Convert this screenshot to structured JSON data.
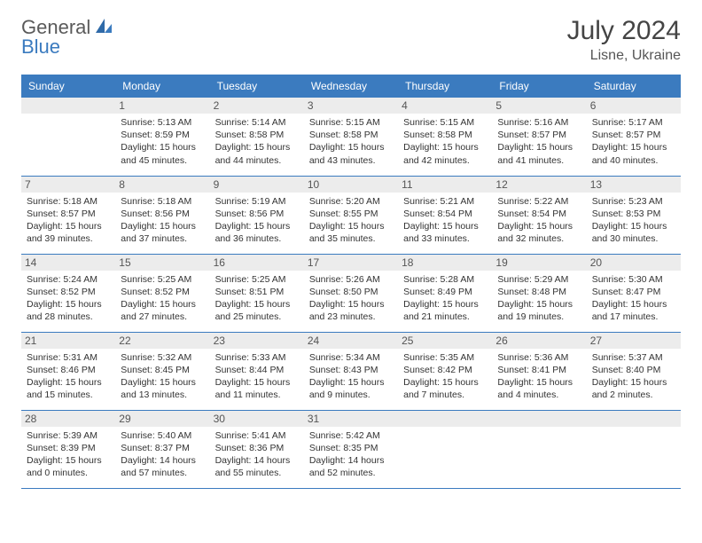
{
  "brand": {
    "part_a": "General",
    "part_b": "Blue"
  },
  "title": "July 2024",
  "location": "Lisne, Ukraine",
  "colors": {
    "header_bg": "#3b7bbf",
    "header_text": "#ffffff",
    "daynum_bg": "#ececec",
    "border": "#3b7bbf",
    "body_text": "#333333",
    "logo_gray": "#5a5a5a",
    "logo_blue": "#3b7bbf"
  },
  "weekdays": [
    "Sunday",
    "Monday",
    "Tuesday",
    "Wednesday",
    "Thursday",
    "Friday",
    "Saturday"
  ],
  "weeks": [
    [
      null,
      {
        "n": "1",
        "sr": "Sunrise: 5:13 AM",
        "ss": "Sunset: 8:59 PM",
        "d1": "Daylight: 15 hours",
        "d2": "and 45 minutes."
      },
      {
        "n": "2",
        "sr": "Sunrise: 5:14 AM",
        "ss": "Sunset: 8:58 PM",
        "d1": "Daylight: 15 hours",
        "d2": "and 44 minutes."
      },
      {
        "n": "3",
        "sr": "Sunrise: 5:15 AM",
        "ss": "Sunset: 8:58 PM",
        "d1": "Daylight: 15 hours",
        "d2": "and 43 minutes."
      },
      {
        "n": "4",
        "sr": "Sunrise: 5:15 AM",
        "ss": "Sunset: 8:58 PM",
        "d1": "Daylight: 15 hours",
        "d2": "and 42 minutes."
      },
      {
        "n": "5",
        "sr": "Sunrise: 5:16 AM",
        "ss": "Sunset: 8:57 PM",
        "d1": "Daylight: 15 hours",
        "d2": "and 41 minutes."
      },
      {
        "n": "6",
        "sr": "Sunrise: 5:17 AM",
        "ss": "Sunset: 8:57 PM",
        "d1": "Daylight: 15 hours",
        "d2": "and 40 minutes."
      }
    ],
    [
      {
        "n": "7",
        "sr": "Sunrise: 5:18 AM",
        "ss": "Sunset: 8:57 PM",
        "d1": "Daylight: 15 hours",
        "d2": "and 39 minutes."
      },
      {
        "n": "8",
        "sr": "Sunrise: 5:18 AM",
        "ss": "Sunset: 8:56 PM",
        "d1": "Daylight: 15 hours",
        "d2": "and 37 minutes."
      },
      {
        "n": "9",
        "sr": "Sunrise: 5:19 AM",
        "ss": "Sunset: 8:56 PM",
        "d1": "Daylight: 15 hours",
        "d2": "and 36 minutes."
      },
      {
        "n": "10",
        "sr": "Sunrise: 5:20 AM",
        "ss": "Sunset: 8:55 PM",
        "d1": "Daylight: 15 hours",
        "d2": "and 35 minutes."
      },
      {
        "n": "11",
        "sr": "Sunrise: 5:21 AM",
        "ss": "Sunset: 8:54 PM",
        "d1": "Daylight: 15 hours",
        "d2": "and 33 minutes."
      },
      {
        "n": "12",
        "sr": "Sunrise: 5:22 AM",
        "ss": "Sunset: 8:54 PM",
        "d1": "Daylight: 15 hours",
        "d2": "and 32 minutes."
      },
      {
        "n": "13",
        "sr": "Sunrise: 5:23 AM",
        "ss": "Sunset: 8:53 PM",
        "d1": "Daylight: 15 hours",
        "d2": "and 30 minutes."
      }
    ],
    [
      {
        "n": "14",
        "sr": "Sunrise: 5:24 AM",
        "ss": "Sunset: 8:52 PM",
        "d1": "Daylight: 15 hours",
        "d2": "and 28 minutes."
      },
      {
        "n": "15",
        "sr": "Sunrise: 5:25 AM",
        "ss": "Sunset: 8:52 PM",
        "d1": "Daylight: 15 hours",
        "d2": "and 27 minutes."
      },
      {
        "n": "16",
        "sr": "Sunrise: 5:25 AM",
        "ss": "Sunset: 8:51 PM",
        "d1": "Daylight: 15 hours",
        "d2": "and 25 minutes."
      },
      {
        "n": "17",
        "sr": "Sunrise: 5:26 AM",
        "ss": "Sunset: 8:50 PM",
        "d1": "Daylight: 15 hours",
        "d2": "and 23 minutes."
      },
      {
        "n": "18",
        "sr": "Sunrise: 5:28 AM",
        "ss": "Sunset: 8:49 PM",
        "d1": "Daylight: 15 hours",
        "d2": "and 21 minutes."
      },
      {
        "n": "19",
        "sr": "Sunrise: 5:29 AM",
        "ss": "Sunset: 8:48 PM",
        "d1": "Daylight: 15 hours",
        "d2": "and 19 minutes."
      },
      {
        "n": "20",
        "sr": "Sunrise: 5:30 AM",
        "ss": "Sunset: 8:47 PM",
        "d1": "Daylight: 15 hours",
        "d2": "and 17 minutes."
      }
    ],
    [
      {
        "n": "21",
        "sr": "Sunrise: 5:31 AM",
        "ss": "Sunset: 8:46 PM",
        "d1": "Daylight: 15 hours",
        "d2": "and 15 minutes."
      },
      {
        "n": "22",
        "sr": "Sunrise: 5:32 AM",
        "ss": "Sunset: 8:45 PM",
        "d1": "Daylight: 15 hours",
        "d2": "and 13 minutes."
      },
      {
        "n": "23",
        "sr": "Sunrise: 5:33 AM",
        "ss": "Sunset: 8:44 PM",
        "d1": "Daylight: 15 hours",
        "d2": "and 11 minutes."
      },
      {
        "n": "24",
        "sr": "Sunrise: 5:34 AM",
        "ss": "Sunset: 8:43 PM",
        "d1": "Daylight: 15 hours",
        "d2": "and 9 minutes."
      },
      {
        "n": "25",
        "sr": "Sunrise: 5:35 AM",
        "ss": "Sunset: 8:42 PM",
        "d1": "Daylight: 15 hours",
        "d2": "and 7 minutes."
      },
      {
        "n": "26",
        "sr": "Sunrise: 5:36 AM",
        "ss": "Sunset: 8:41 PM",
        "d1": "Daylight: 15 hours",
        "d2": "and 4 minutes."
      },
      {
        "n": "27",
        "sr": "Sunrise: 5:37 AM",
        "ss": "Sunset: 8:40 PM",
        "d1": "Daylight: 15 hours",
        "d2": "and 2 minutes."
      }
    ],
    [
      {
        "n": "28",
        "sr": "Sunrise: 5:39 AM",
        "ss": "Sunset: 8:39 PM",
        "d1": "Daylight: 15 hours",
        "d2": "and 0 minutes."
      },
      {
        "n": "29",
        "sr": "Sunrise: 5:40 AM",
        "ss": "Sunset: 8:37 PM",
        "d1": "Daylight: 14 hours",
        "d2": "and 57 minutes."
      },
      {
        "n": "30",
        "sr": "Sunrise: 5:41 AM",
        "ss": "Sunset: 8:36 PM",
        "d1": "Daylight: 14 hours",
        "d2": "and 55 minutes."
      },
      {
        "n": "31",
        "sr": "Sunrise: 5:42 AM",
        "ss": "Sunset: 8:35 PM",
        "d1": "Daylight: 14 hours",
        "d2": "and 52 minutes."
      },
      null,
      null,
      null
    ]
  ]
}
